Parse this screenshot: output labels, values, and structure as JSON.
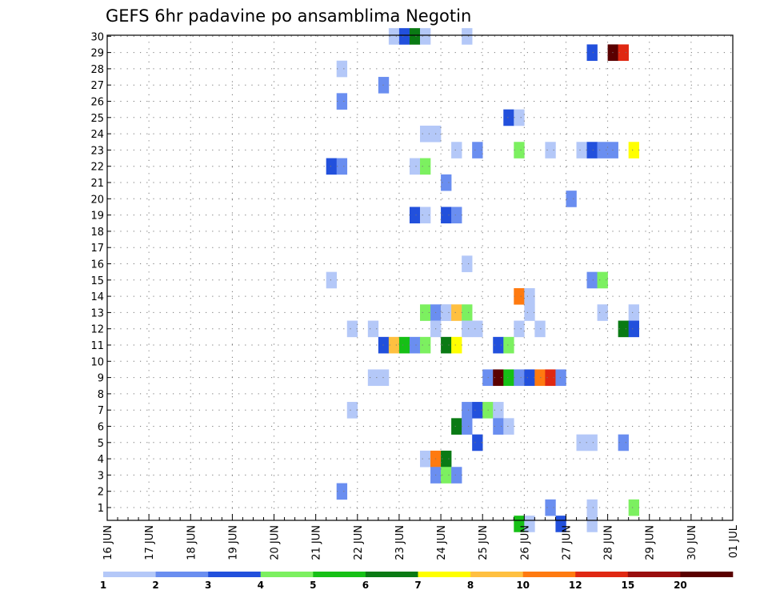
{
  "chart_data": {
    "type": "heatmap",
    "title": "GEFS 6hr padavine po ansamblima Negotin",
    "x_tick_labels": [
      "16 JUN",
      "17 JUN",
      "18 JUN",
      "19 JUN",
      "20 JUN",
      "21 JUN",
      "22 JUN",
      "23 JUN",
      "24 JUN",
      "25 JUN",
      "26 JUN",
      "27 JUN",
      "28 JUN",
      "29 JUN",
      "30 JUN",
      "01 JUL"
    ],
    "y_tick_labels": [
      "1",
      "2",
      "3",
      "4",
      "5",
      "6",
      "7",
      "8",
      "9",
      "10",
      "11",
      "12",
      "13",
      "14",
      "15",
      "16",
      "17",
      "18",
      "19",
      "20",
      "21",
      "22",
      "23",
      "24",
      "25",
      "26",
      "27",
      "28",
      "29",
      "30"
    ],
    "time_steps_per_day": 4,
    "grid": "dotted",
    "colorbar": {
      "levels": [
        "1",
        "2",
        "3",
        "4",
        "5",
        "6",
        "7",
        "8",
        "10",
        "12",
        "15",
        "20"
      ],
      "colors": [
        "#b4c8f8",
        "#6a8ef0",
        "#2250dc",
        "#7cf060",
        "#16c016",
        "#0a7a14",
        "#ffff00",
        "#ffc040",
        "#ff7a10",
        "#e02812",
        "#9a0e0e",
        "#5a0000"
      ]
    },
    "cells": [
      {
        "member": 30,
        "step": 27,
        "color": 0
      },
      {
        "member": 30,
        "step": 28,
        "color": 2
      },
      {
        "member": 30,
        "step": 29,
        "color": 5
      },
      {
        "member": 30,
        "step": 30,
        "color": 0
      },
      {
        "member": 30,
        "step": 34,
        "color": 0
      },
      {
        "member": 29,
        "step": 46,
        "color": 2
      },
      {
        "member": 29,
        "step": 48,
        "color": 11
      },
      {
        "member": 29,
        "step": 49,
        "color": 9
      },
      {
        "member": 28,
        "step": 22,
        "color": 0
      },
      {
        "member": 27,
        "step": 26,
        "color": 1
      },
      {
        "member": 26,
        "step": 22,
        "color": 1
      },
      {
        "member": 25,
        "step": 38,
        "color": 2
      },
      {
        "member": 25,
        "step": 39,
        "color": 0
      },
      {
        "member": 24,
        "step": 30,
        "color": 0
      },
      {
        "member": 24,
        "step": 31,
        "color": 0
      },
      {
        "member": 23,
        "step": 33,
        "color": 0
      },
      {
        "member": 23,
        "step": 35,
        "color": 1
      },
      {
        "member": 23,
        "step": 39,
        "color": 3
      },
      {
        "member": 23,
        "step": 42,
        "color": 0
      },
      {
        "member": 23,
        "step": 45,
        "color": 0
      },
      {
        "member": 23,
        "step": 46,
        "color": 2
      },
      {
        "member": 23,
        "step": 47,
        "color": 1
      },
      {
        "member": 23,
        "step": 48,
        "color": 1
      },
      {
        "member": 23,
        "step": 50,
        "color": 6
      },
      {
        "member": 22,
        "step": 21,
        "color": 2
      },
      {
        "member": 22,
        "step": 22,
        "color": 1
      },
      {
        "member": 22,
        "step": 29,
        "color": 0
      },
      {
        "member": 22,
        "step": 30,
        "color": 3
      },
      {
        "member": 21,
        "step": 32,
        "color": 1
      },
      {
        "member": 20,
        "step": 44,
        "color": 1
      },
      {
        "member": 19,
        "step": 29,
        "color": 2
      },
      {
        "member": 19,
        "step": 30,
        "color": 0
      },
      {
        "member": 19,
        "step": 32,
        "color": 2
      },
      {
        "member": 19,
        "step": 33,
        "color": 1
      },
      {
        "member": 16,
        "step": 34,
        "color": 0
      },
      {
        "member": 15,
        "step": 21,
        "color": 0
      },
      {
        "member": 15,
        "step": 46,
        "color": 1
      },
      {
        "member": 15,
        "step": 47,
        "color": 3
      },
      {
        "member": 14,
        "step": 39,
        "color": 8
      },
      {
        "member": 14,
        "step": 40,
        "color": 0
      },
      {
        "member": 13,
        "step": 30,
        "color": 3
      },
      {
        "member": 13,
        "step": 31,
        "color": 1
      },
      {
        "member": 13,
        "step": 32,
        "color": 0
      },
      {
        "member": 13,
        "step": 32,
        "color": 0
      },
      {
        "member": 13,
        "step": 33,
        "color": 7
      },
      {
        "member": 13,
        "step": 34,
        "color": 3
      },
      {
        "member": 13,
        "step": 40,
        "color": 0
      },
      {
        "member": 13,
        "step": 47,
        "color": 0
      },
      {
        "member": 13,
        "step": 50,
        "color": 0
      },
      {
        "member": 12,
        "step": 23,
        "color": 0
      },
      {
        "member": 12,
        "step": 25,
        "color": 0
      },
      {
        "member": 12,
        "step": 31,
        "color": 0
      },
      {
        "member": 12,
        "step": 34,
        "color": 0
      },
      {
        "member": 12,
        "step": 35,
        "color": 0
      },
      {
        "member": 12,
        "step": 39,
        "color": 0
      },
      {
        "member": 12,
        "step": 41,
        "color": 0
      },
      {
        "member": 12,
        "step": 49,
        "color": 5
      },
      {
        "member": 12,
        "step": 50,
        "color": 2
      },
      {
        "member": 11,
        "step": 26,
        "color": 2
      },
      {
        "member": 11,
        "step": 27,
        "color": 7
      },
      {
        "member": 11,
        "step": 28,
        "color": 4
      },
      {
        "member": 11,
        "step": 29,
        "color": 1
      },
      {
        "member": 11,
        "step": 30,
        "color": 3
      },
      {
        "member": 11,
        "step": 32,
        "color": 5
      },
      {
        "member": 11,
        "step": 33,
        "color": 6
      },
      {
        "member": 11,
        "step": 37,
        "color": 2
      },
      {
        "member": 11,
        "step": 38,
        "color": 3
      },
      {
        "member": 9,
        "step": 25,
        "color": 0
      },
      {
        "member": 9,
        "step": 26,
        "color": 0
      },
      {
        "member": 9,
        "step": 36,
        "color": 1
      },
      {
        "member": 9,
        "step": 37,
        "color": 11
      },
      {
        "member": 9,
        "step": 38,
        "color": 4
      },
      {
        "member": 9,
        "step": 39,
        "color": 1
      },
      {
        "member": 9,
        "step": 40,
        "color": 2
      },
      {
        "member": 9,
        "step": 41,
        "color": 8
      },
      {
        "member": 9,
        "step": 42,
        "color": 9
      },
      {
        "member": 9,
        "step": 43,
        "color": 1
      },
      {
        "member": 7,
        "step": 23,
        "color": 0
      },
      {
        "member": 7,
        "step": 34,
        "color": 1
      },
      {
        "member": 7,
        "step": 35,
        "color": 2
      },
      {
        "member": 7,
        "step": 36,
        "color": 3
      },
      {
        "member": 7,
        "step": 37,
        "color": 0
      },
      {
        "member": 6,
        "step": 33,
        "color": 5
      },
      {
        "member": 6,
        "step": 34,
        "color": 1
      },
      {
        "member": 6,
        "step": 37,
        "color": 1
      },
      {
        "member": 6,
        "step": 38,
        "color": 0
      },
      {
        "member": 5,
        "step": 35,
        "color": 2
      },
      {
        "member": 5,
        "step": 45,
        "color": 0
      },
      {
        "member": 5,
        "step": 46,
        "color": 0
      },
      {
        "member": 5,
        "step": 49,
        "color": 1
      },
      {
        "member": 4,
        "step": 30,
        "color": 0
      },
      {
        "member": 4,
        "step": 31,
        "color": 8
      },
      {
        "member": 4,
        "step": 32,
        "color": 5
      },
      {
        "member": 3,
        "step": 31,
        "color": 1
      },
      {
        "member": 3,
        "step": 32,
        "color": 3
      },
      {
        "member": 3,
        "step": 33,
        "color": 1
      },
      {
        "member": 2,
        "step": 22,
        "color": 1
      },
      {
        "member": 1,
        "step": 42,
        "color": 1
      },
      {
        "member": 1,
        "step": 46,
        "color": 0
      },
      {
        "member": 1,
        "step": 50,
        "color": 3
      },
      {
        "member": 0,
        "step": 39,
        "color": 4
      },
      {
        "member": 0,
        "step": 40,
        "color": 0
      },
      {
        "member": 0,
        "step": 43,
        "color": 2
      },
      {
        "member": 0,
        "step": 46,
        "color": 0
      }
    ]
  }
}
